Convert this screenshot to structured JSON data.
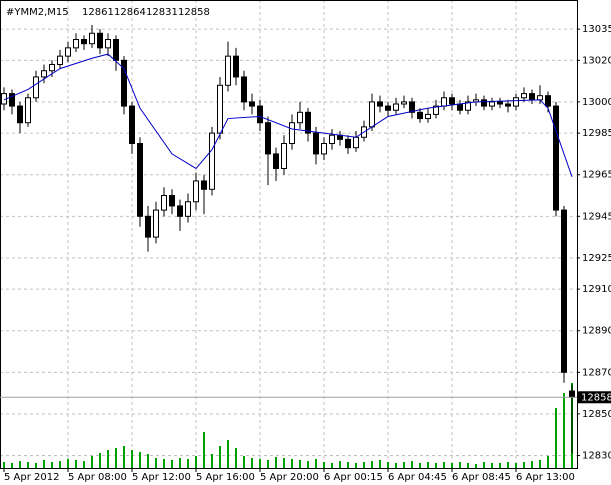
{
  "chart_data": {
    "type": "candlestick",
    "symbol": "#YMM2,M15",
    "categories": [
      "5 Apr 2012",
      null,
      null,
      null,
      null,
      null,
      null,
      null,
      "5 Apr 08:00",
      null,
      null,
      null,
      null,
      null,
      null,
      null,
      "5 Apr 12:00",
      null,
      null,
      null,
      null,
      null,
      null,
      null,
      "5 Apr 16:00",
      null,
      null,
      null,
      null,
      null,
      null,
      null,
      "5 Apr 20:00",
      null,
      null,
      null,
      null,
      null,
      null,
      null,
      "6 Apr 00:15",
      null,
      null,
      null,
      null,
      null,
      null,
      null,
      "6 Apr 04:45",
      null,
      null,
      null,
      null,
      null,
      null,
      null,
      "6 Apr 08:45",
      null,
      null,
      null,
      null,
      null,
      null,
      null,
      "6 Apr 13:00",
      null,
      null,
      null,
      null,
      null,
      null,
      null
    ],
    "candles": [
      [
        12999,
        13007,
        12996,
        13004
      ],
      [
        13004,
        13006,
        12994,
        12998
      ],
      [
        12998,
        13000,
        12985,
        12990
      ],
      [
        12990,
        13004,
        12988,
        13002
      ],
      [
        13002,
        13015,
        13000,
        13012
      ],
      [
        13012,
        13018,
        13009,
        13015
      ],
      [
        13015,
        13020,
        13012,
        13018
      ],
      [
        13018,
        13025,
        13016,
        13022
      ],
      [
        13022,
        13029,
        13019,
        13026
      ],
      [
        13026,
        13033,
        13024,
        13030
      ],
      [
        13030,
        13032,
        13025,
        13028
      ],
      [
        13028,
        13037,
        13026,
        13033
      ],
      [
        13033,
        13035,
        13023,
        13026
      ],
      [
        13026,
        13033,
        13022,
        13030
      ],
      [
        13030,
        13032,
        13015,
        13020
      ],
      [
        13020,
        13022,
        12994,
        12998
      ],
      [
        12998,
        13000,
        12975,
        12980
      ],
      [
        12980,
        12983,
        12940,
        12945
      ],
      [
        12945,
        12950,
        12928,
        12935
      ],
      [
        12935,
        12952,
        12932,
        12948
      ],
      [
        12948,
        12959,
        12945,
        12955
      ],
      [
        12955,
        12958,
        12946,
        12950
      ],
      [
        12950,
        12953,
        12938,
        12945
      ],
      [
        12945,
        12956,
        12942,
        12952
      ],
      [
        12952,
        12966,
        12948,
        12962
      ],
      [
        12962,
        12965,
        12946,
        12958
      ],
      [
        12958,
        12988,
        12955,
        12985
      ],
      [
        12985,
        13012,
        12982,
        13008
      ],
      [
        13008,
        13029,
        13005,
        13022
      ],
      [
        13022,
        13026,
        13008,
        13012
      ],
      [
        13012,
        13015,
        12996,
        13000
      ],
      [
        13000,
        13004,
        12994,
        12998
      ],
      [
        12998,
        13001,
        12986,
        12990
      ],
      [
        12990,
        12993,
        12960,
        12975
      ],
      [
        12975,
        12978,
        12962,
        12968
      ],
      [
        12968,
        12984,
        12965,
        12980
      ],
      [
        12980,
        12994,
        12977,
        12990
      ],
      [
        12990,
        13000,
        12987,
        12995
      ],
      [
        12995,
        12997,
        12981,
        12985
      ],
      [
        12985,
        12988,
        12970,
        12975
      ],
      [
        12975,
        12983,
        12972,
        12980
      ],
      [
        12980,
        12987,
        12977,
        12984
      ],
      [
        12984,
        12986,
        12979,
        12982
      ],
      [
        12982,
        12984,
        12975,
        12978
      ],
      [
        12978,
        12986,
        12976,
        12983
      ],
      [
        12983,
        12991,
        12981,
        12988
      ],
      [
        12988,
        13004,
        12986,
        13000
      ],
      [
        13000,
        13003,
        12995,
        12998
      ],
      [
        12998,
        13000,
        12993,
        12996
      ],
      [
        12996,
        13002,
        12994,
        12999
      ],
      [
        12999,
        13003,
        12997,
        13000
      ],
      [
        13000,
        13002,
        12992,
        12995
      ],
      [
        12995,
        12997,
        12990,
        12992
      ],
      [
        12992,
        12997,
        12990,
        12994
      ],
      [
        12994,
        13001,
        12992,
        12998
      ],
      [
        12998,
        13005,
        12996,
        13002
      ],
      [
        13002,
        13004,
        12996,
        12999
      ],
      [
        12999,
        13001,
        12994,
        12996
      ],
      [
        12996,
        13003,
        12994,
        13000
      ],
      [
        13000,
        13004,
        12998,
        13001
      ],
      [
        13001,
        13003,
        12996,
        12998
      ],
      [
        12998,
        13002,
        12996,
        13000
      ],
      [
        13000,
        13002,
        12997,
        12999
      ],
      [
        12999,
        13001,
        12995,
        12998
      ],
      [
        12998,
        13004,
        12996,
        13002
      ],
      [
        13002,
        13007,
        13000,
        13004
      ],
      [
        13004,
        13006,
        12999,
        13001
      ],
      [
        13001,
        13008,
        12999,
        13003
      ],
      [
        13003,
        13005,
        12995,
        12998
      ],
      [
        12998,
        13000,
        12945,
        12948
      ],
      [
        12948,
        12950,
        12865,
        12870
      ],
      [
        12861,
        12864,
        12831,
        12858
      ]
    ],
    "volume": [
      6,
      5,
      7,
      6,
      5,
      8,
      6,
      7,
      9,
      8,
      7,
      12,
      15,
      18,
      20,
      22,
      18,
      16,
      14,
      10,
      9,
      8,
      10,
      9,
      12,
      36,
      14,
      22,
      28,
      20,
      12,
      10,
      9,
      8,
      11,
      10,
      9,
      8,
      7,
      9,
      6,
      5,
      7,
      6,
      5,
      6,
      7,
      8,
      6,
      5,
      6,
      7,
      5,
      6,
      5,
      6,
      5,
      6,
      5,
      4,
      6,
      5,
      5,
      6,
      5,
      6,
      7,
      8,
      12,
      60,
      75,
      85
    ],
    "volume_color": "#00a000",
    "ma": {
      "x": [
        0,
        3,
        7,
        11,
        13,
        15,
        17,
        21,
        24,
        26,
        28,
        32,
        36,
        40,
        44,
        48,
        53,
        59,
        67,
        68,
        71
      ],
      "values": [
        13001,
        13006,
        13016,
        13021,
        13023,
        13016,
        12997,
        12975,
        12968,
        12977,
        12992,
        12993,
        12987,
        12985,
        12983,
        12993,
        12997,
        13000,
        13001,
        12997,
        12964
      ],
      "color": "#0000c8"
    },
    "ylim": [
      12824,
      13049
    ],
    "yticks": [
      13035,
      13020,
      13000,
      12985,
      12965,
      12945,
      12925,
      12910,
      12890,
      12870,
      12850,
      12830
    ],
    "grid": true
  }
}
